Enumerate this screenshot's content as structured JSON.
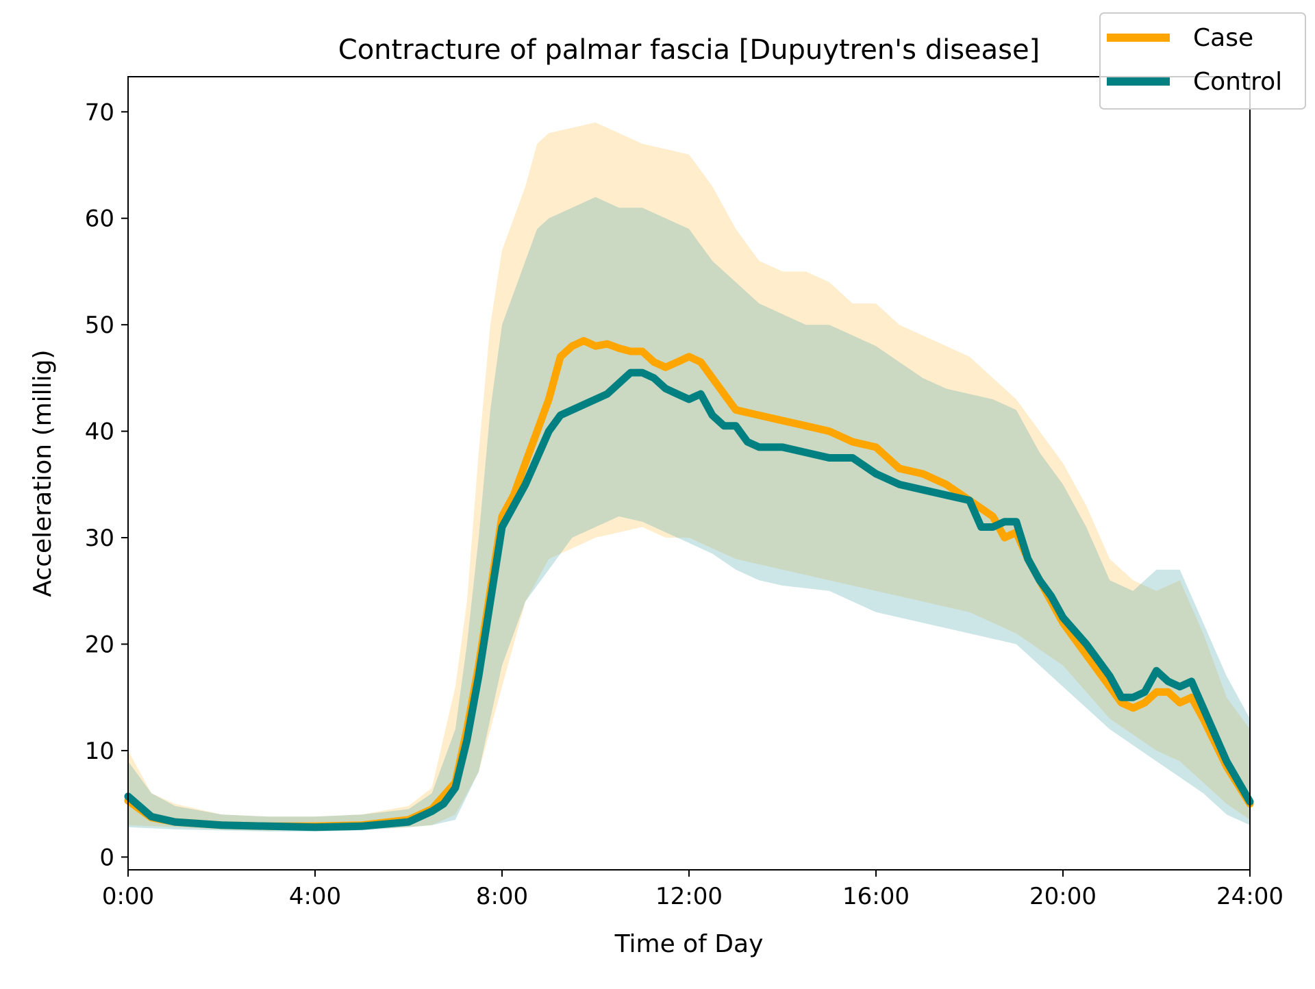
{
  "chart_data": {
    "type": "line",
    "title": "Contracture of palmar fascia [Dupuytren's disease]",
    "xlabel": "Time of Day",
    "ylabel": "Acceleration (millig)",
    "xlim": [
      0,
      24
    ],
    "ylim": [
      -1.2,
      73.3
    ],
    "x_ticks": [
      {
        "value": 0,
        "label": "0:00"
      },
      {
        "value": 4,
        "label": "4:00"
      },
      {
        "value": 8,
        "label": "8:00"
      },
      {
        "value": 12,
        "label": "12:00"
      },
      {
        "value": 16,
        "label": "16:00"
      },
      {
        "value": 20,
        "label": "20:00"
      },
      {
        "value": 24,
        "label": "24:00"
      }
    ],
    "y_ticks": [
      {
        "value": 0,
        "label": "0"
      },
      {
        "value": 10,
        "label": "10"
      },
      {
        "value": 20,
        "label": "20"
      },
      {
        "value": 30,
        "label": "30"
      },
      {
        "value": 40,
        "label": "40"
      },
      {
        "value": 50,
        "label": "50"
      },
      {
        "value": 60,
        "label": "60"
      },
      {
        "value": 70,
        "label": "70"
      }
    ],
    "grid": false,
    "legend_position": "top-right",
    "series": [
      {
        "name": "Case",
        "color": "#FFA500",
        "band_color": "#FFA500",
        "band_opacity": 0.2,
        "points": [
          [
            0,
            5.3
          ],
          [
            0.5,
            3.7
          ],
          [
            1,
            3.3
          ],
          [
            2,
            3.0
          ],
          [
            3,
            2.9
          ],
          [
            4,
            2.9
          ],
          [
            5,
            3.0
          ],
          [
            6,
            3.5
          ],
          [
            6.5,
            4.5
          ],
          [
            7,
            7
          ],
          [
            7.25,
            12
          ],
          [
            7.5,
            18
          ],
          [
            7.75,
            25
          ],
          [
            8,
            32
          ],
          [
            8.25,
            34
          ],
          [
            8.5,
            37
          ],
          [
            8.75,
            40
          ],
          [
            9,
            43
          ],
          [
            9.25,
            47
          ],
          [
            9.5,
            48
          ],
          [
            9.75,
            48.5
          ],
          [
            10,
            48
          ],
          [
            10.25,
            48.2
          ],
          [
            10.5,
            47.8
          ],
          [
            10.75,
            47.5
          ],
          [
            11,
            47.5
          ],
          [
            11.25,
            46.5
          ],
          [
            11.5,
            46
          ],
          [
            11.75,
            46.5
          ],
          [
            12,
            47
          ],
          [
            12.25,
            46.5
          ],
          [
            12.5,
            45
          ],
          [
            12.75,
            43.5
          ],
          [
            13,
            42
          ],
          [
            13.5,
            41.5
          ],
          [
            14,
            41
          ],
          [
            14.5,
            40.5
          ],
          [
            15,
            40
          ],
          [
            15.5,
            39
          ],
          [
            16,
            38.5
          ],
          [
            16.5,
            36.5
          ],
          [
            17,
            36
          ],
          [
            17.5,
            35
          ],
          [
            18,
            33.5
          ],
          [
            18.5,
            32
          ],
          [
            18.75,
            30
          ],
          [
            19,
            30.5
          ],
          [
            19.25,
            28
          ],
          [
            19.5,
            26
          ],
          [
            19.75,
            24
          ],
          [
            20,
            22
          ],
          [
            20.5,
            19
          ],
          [
            21,
            16
          ],
          [
            21.25,
            14.5
          ],
          [
            21.5,
            14
          ],
          [
            21.75,
            14.5
          ],
          [
            22,
            15.5
          ],
          [
            22.25,
            15.5
          ],
          [
            22.5,
            14.5
          ],
          [
            22.75,
            15
          ],
          [
            23,
            13
          ],
          [
            23.5,
            8.5
          ],
          [
            24,
            5
          ]
        ],
        "band_lower": [
          [
            0,
            3.0
          ],
          [
            1,
            2.8
          ],
          [
            2,
            2.6
          ],
          [
            3,
            2.5
          ],
          [
            4,
            2.5
          ],
          [
            5,
            2.6
          ],
          [
            6,
            2.8
          ],
          [
            6.5,
            3
          ],
          [
            7,
            4
          ],
          [
            7.5,
            8
          ],
          [
            8,
            16
          ],
          [
            8.5,
            24
          ],
          [
            9,
            28
          ],
          [
            9.5,
            29
          ],
          [
            10,
            30
          ],
          [
            10.5,
            30.5
          ],
          [
            11,
            31
          ],
          [
            11.5,
            30
          ],
          [
            12,
            30
          ],
          [
            12.5,
            29
          ],
          [
            13,
            28
          ],
          [
            14,
            27
          ],
          [
            15,
            26
          ],
          [
            16,
            25
          ],
          [
            17,
            24
          ],
          [
            18,
            23
          ],
          [
            19,
            21
          ],
          [
            20,
            18
          ],
          [
            21,
            13
          ],
          [
            22,
            10
          ],
          [
            22.5,
            9
          ],
          [
            23,
            7
          ],
          [
            23.5,
            5
          ],
          [
            24,
            3.5
          ]
        ],
        "band_upper": [
          [
            0,
            10
          ],
          [
            0.5,
            6
          ],
          [
            1,
            5
          ],
          [
            2,
            4
          ],
          [
            3,
            3.8
          ],
          [
            4,
            3.8
          ],
          [
            5,
            4
          ],
          [
            6,
            4.8
          ],
          [
            6.5,
            6.5
          ],
          [
            7,
            16
          ],
          [
            7.25,
            24
          ],
          [
            7.5,
            38
          ],
          [
            7.75,
            50
          ],
          [
            8,
            57
          ],
          [
            8.25,
            60
          ],
          [
            8.5,
            63
          ],
          [
            8.75,
            67
          ],
          [
            9,
            68
          ],
          [
            9.5,
            68.5
          ],
          [
            10,
            69
          ],
          [
            10.5,
            68
          ],
          [
            11,
            67
          ],
          [
            11.5,
            66.5
          ],
          [
            12,
            66
          ],
          [
            12.5,
            63
          ],
          [
            13,
            59
          ],
          [
            13.5,
            56
          ],
          [
            14,
            55
          ],
          [
            14.5,
            55
          ],
          [
            15,
            54
          ],
          [
            15.5,
            52
          ],
          [
            16,
            52
          ],
          [
            16.5,
            50
          ],
          [
            17,
            49
          ],
          [
            17.5,
            48
          ],
          [
            18,
            47
          ],
          [
            18.5,
            45
          ],
          [
            19,
            43
          ],
          [
            19.5,
            40
          ],
          [
            20,
            37
          ],
          [
            20.5,
            33
          ],
          [
            21,
            28
          ],
          [
            21.5,
            26
          ],
          [
            22,
            25
          ],
          [
            22.5,
            26
          ],
          [
            23,
            21
          ],
          [
            23.5,
            15
          ],
          [
            24,
            12
          ]
        ]
      },
      {
        "name": "Control",
        "color": "#008080",
        "band_color": "#48A5A8",
        "band_opacity": 0.28,
        "points": [
          [
            0,
            5.7
          ],
          [
            0.5,
            3.8
          ],
          [
            1,
            3.3
          ],
          [
            2,
            3.0
          ],
          [
            3,
            2.9
          ],
          [
            4,
            2.8
          ],
          [
            5,
            2.9
          ],
          [
            6,
            3.3
          ],
          [
            6.5,
            4.3
          ],
          [
            6.75,
            5
          ],
          [
            7,
            6.5
          ],
          [
            7.25,
            11
          ],
          [
            7.5,
            17
          ],
          [
            7.75,
            24
          ],
          [
            8,
            31
          ],
          [
            8.25,
            33
          ],
          [
            8.5,
            35
          ],
          [
            8.75,
            37.5
          ],
          [
            9,
            40
          ],
          [
            9.25,
            41.5
          ],
          [
            9.5,
            42
          ],
          [
            9.75,
            42.5
          ],
          [
            10,
            43
          ],
          [
            10.25,
            43.5
          ],
          [
            10.5,
            44.5
          ],
          [
            10.75,
            45.5
          ],
          [
            11,
            45.5
          ],
          [
            11.25,
            45
          ],
          [
            11.5,
            44
          ],
          [
            11.75,
            43.5
          ],
          [
            12,
            43
          ],
          [
            12.25,
            43.5
          ],
          [
            12.5,
            41.5
          ],
          [
            12.75,
            40.5
          ],
          [
            13,
            40.5
          ],
          [
            13.25,
            39
          ],
          [
            13.5,
            38.5
          ],
          [
            14,
            38.5
          ],
          [
            14.5,
            38
          ],
          [
            15,
            37.5
          ],
          [
            15.5,
            37.5
          ],
          [
            16,
            36
          ],
          [
            16.5,
            35
          ],
          [
            17,
            34.5
          ],
          [
            17.5,
            34
          ],
          [
            18,
            33.5
          ],
          [
            18.25,
            31
          ],
          [
            18.5,
            31
          ],
          [
            18.75,
            31.5
          ],
          [
            19,
            31.5
          ],
          [
            19.25,
            28
          ],
          [
            19.5,
            26
          ],
          [
            19.75,
            24.5
          ],
          [
            20,
            22.5
          ],
          [
            20.5,
            20
          ],
          [
            20.75,
            18.5
          ],
          [
            21,
            17
          ],
          [
            21.25,
            15
          ],
          [
            21.5,
            15
          ],
          [
            21.75,
            15.5
          ],
          [
            22,
            17.5
          ],
          [
            22.25,
            16.5
          ],
          [
            22.5,
            16
          ],
          [
            22.75,
            16.5
          ],
          [
            23,
            14
          ],
          [
            23.5,
            9
          ],
          [
            24,
            5.2
          ]
        ],
        "band_lower": [
          [
            0,
            2.8
          ],
          [
            1,
            2.6
          ],
          [
            2,
            2.5
          ],
          [
            3,
            2.4
          ],
          [
            4,
            2.4
          ],
          [
            5,
            2.5
          ],
          [
            6,
            2.8
          ],
          [
            6.5,
            3
          ],
          [
            7,
            3.5
          ],
          [
            7.5,
            8
          ],
          [
            7.75,
            13
          ],
          [
            8,
            18
          ],
          [
            8.5,
            24
          ],
          [
            9,
            27
          ],
          [
            9.5,
            30
          ],
          [
            10,
            31
          ],
          [
            10.5,
            32
          ],
          [
            11,
            31.5
          ],
          [
            11.5,
            30.5
          ],
          [
            12,
            29.5
          ],
          [
            12.5,
            28.5
          ],
          [
            13,
            27
          ],
          [
            13.5,
            26
          ],
          [
            14,
            25.5
          ],
          [
            15,
            25
          ],
          [
            16,
            23
          ],
          [
            17,
            22
          ],
          [
            18,
            21
          ],
          [
            19,
            20
          ],
          [
            20,
            16
          ],
          [
            21,
            12
          ],
          [
            22,
            9
          ],
          [
            23,
            6
          ],
          [
            23.5,
            4
          ],
          [
            24,
            3
          ]
        ],
        "band_upper": [
          [
            0,
            9
          ],
          [
            0.5,
            6
          ],
          [
            1,
            4.8
          ],
          [
            2,
            4
          ],
          [
            3,
            3.8
          ],
          [
            4,
            3.8
          ],
          [
            5,
            4
          ],
          [
            6,
            4.5
          ],
          [
            6.5,
            6
          ],
          [
            7,
            12
          ],
          [
            7.25,
            20
          ],
          [
            7.5,
            30
          ],
          [
            7.75,
            42
          ],
          [
            8,
            50
          ],
          [
            8.25,
            53
          ],
          [
            8.5,
            56
          ],
          [
            8.75,
            59
          ],
          [
            9,
            60
          ],
          [
            9.5,
            61
          ],
          [
            10,
            62
          ],
          [
            10.5,
            61
          ],
          [
            11,
            61
          ],
          [
            11.5,
            60
          ],
          [
            12,
            59
          ],
          [
            12.5,
            56
          ],
          [
            13,
            54
          ],
          [
            13.5,
            52
          ],
          [
            14,
            51
          ],
          [
            14.5,
            50
          ],
          [
            15,
            50
          ],
          [
            15.5,
            49
          ],
          [
            16,
            48
          ],
          [
            16.5,
            46.5
          ],
          [
            17,
            45
          ],
          [
            17.5,
            44
          ],
          [
            18,
            43.5
          ],
          [
            18.5,
            43
          ],
          [
            19,
            42
          ],
          [
            19.5,
            38
          ],
          [
            20,
            35
          ],
          [
            20.5,
            31
          ],
          [
            21,
            26
          ],
          [
            21.5,
            25
          ],
          [
            22,
            27
          ],
          [
            22.5,
            27
          ],
          [
            23,
            22
          ],
          [
            23.5,
            17
          ],
          [
            24,
            13
          ]
        ]
      }
    ]
  }
}
